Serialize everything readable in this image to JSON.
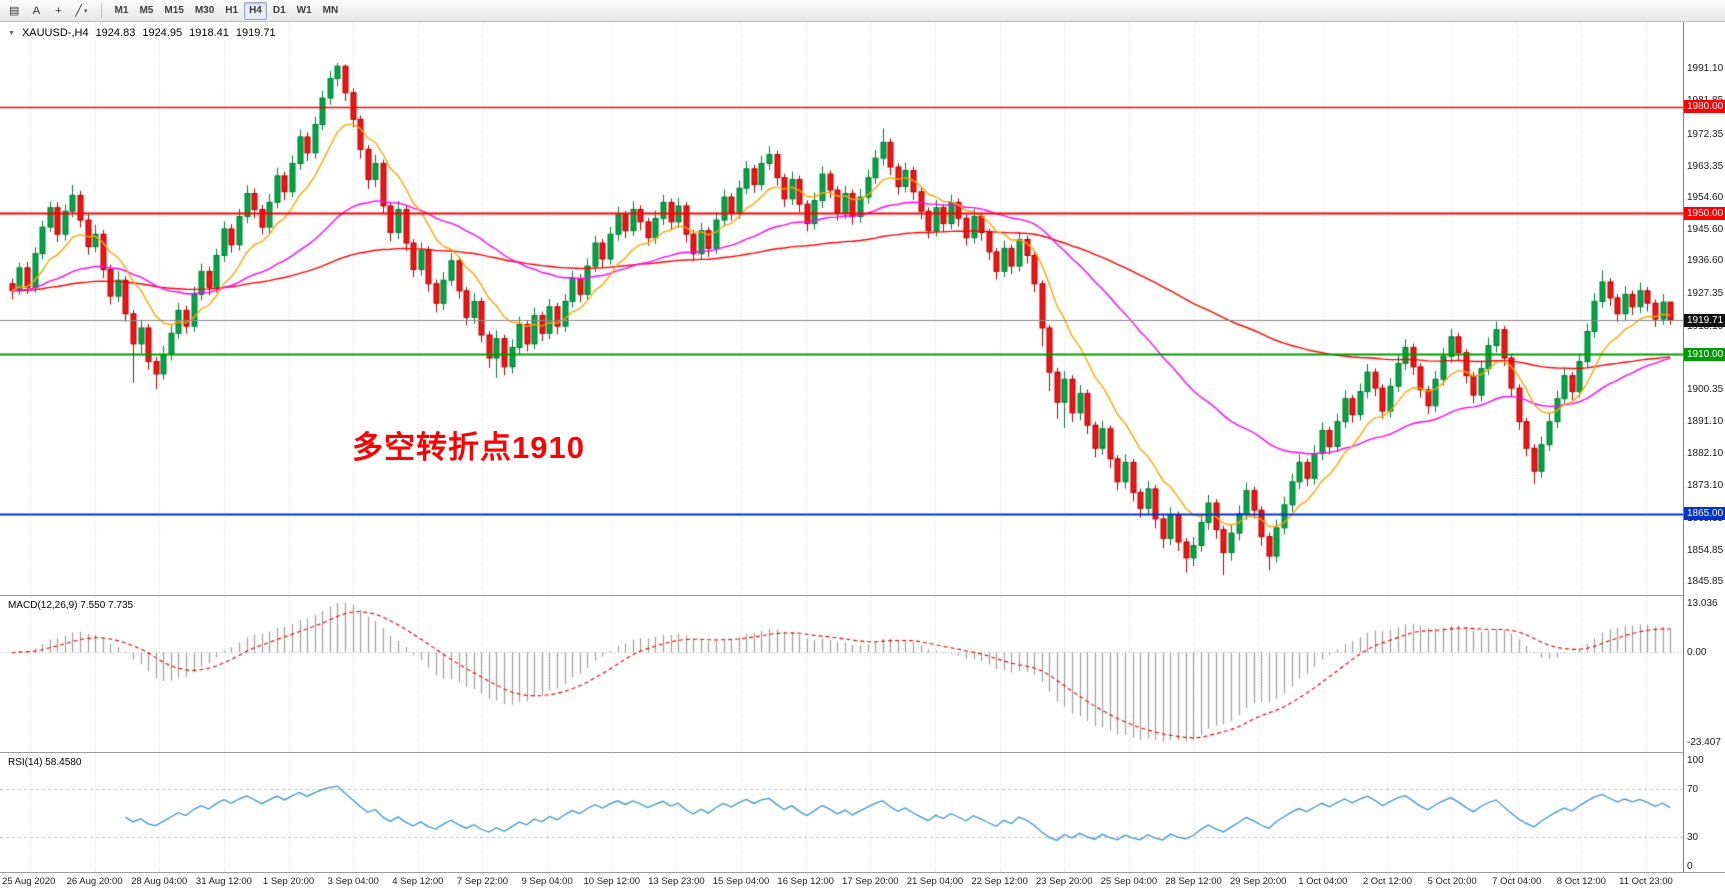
{
  "icons": {
    "caret_down": "▼",
    "charts_grid": "▤",
    "text_tool": "A",
    "crosshair": "+",
    "trendline": "╱",
    "dropdown": "▾"
  },
  "toolbar": {
    "timeframes": [
      "M1",
      "M5",
      "M15",
      "M30",
      "H1",
      "H4",
      "D1",
      "W1",
      "MN"
    ],
    "active_timeframe": "H4"
  },
  "chart": {
    "symbol_label": "XAUUSD-,H4",
    "ohlc": {
      "open": "1924.83",
      "high": "1924.95",
      "low": "1918.41",
      "close": "1919.71"
    },
    "annotation": {
      "text": "多空转折点1910",
      "color": "#ff0000"
    },
    "colors": {
      "up_fill": "#00a546",
      "up_stroke": "#007d33",
      "down_fill": "#ed1515",
      "down_stroke": "#b80000",
      "ma_fast": "#ffa500",
      "ma_mid": "#ff00ff",
      "ma_slow": "#ff0000",
      "grid": "#dcdcdc"
    },
    "price_ticks": [
      1991.1,
      1981.85,
      1972.35,
      1963.35,
      1954.6,
      1945.6,
      1936.6,
      1927.35,
      1918.1,
      1909.1,
      1900.35,
      1891.1,
      1882.1,
      1873.1,
      1863.85,
      1854.85,
      1845.85
    ],
    "levels": [
      {
        "value": 1980.0,
        "label": "1980.00",
        "badge_color": "#ff0000",
        "line_color": "#ff0000",
        "line_width": 1.5
      },
      {
        "value": 1950.0,
        "label": "1950.00",
        "badge_color": "#ff0000",
        "line_color": "#ff0000",
        "line_width": 2
      },
      {
        "value": 1919.71,
        "label": "1919.71",
        "badge_color": "#111111",
        "line_color": "#8a8a8a",
        "line_width": 1,
        "current": true
      },
      {
        "value": 1910.0,
        "label": "1910.00",
        "badge_color": "#009b00",
        "line_color": "#009b00",
        "line_width": 2
      },
      {
        "value": 1865.0,
        "label": "1865.00",
        "badge_color": "#0033cc",
        "line_color": "#0033cc",
        "line_width": 2
      }
    ]
  },
  "panes": {
    "macd": {
      "label": "MACD(12,26,9) 7.550 7.735",
      "axis_labels": [
        {
          "v": 13.036,
          "t": "13.036"
        },
        {
          "v": 0,
          "t": "0.00"
        },
        {
          "v": -23.407,
          "t": "-23.407"
        }
      ],
      "scale_min": -26.0,
      "scale_max": 14.5
    },
    "rsi": {
      "label": "RSI(14) 58.4580",
      "axis_labels": [
        {
          "v": 100,
          "t": "100"
        },
        {
          "v": 70,
          "t": "70"
        },
        {
          "v": 30,
          "t": "30"
        },
        {
          "v": 0,
          "t": "0"
        }
      ],
      "levels": [
        70,
        30
      ]
    }
  },
  "time_axis": [
    "25 Aug 2020",
    "26 Aug 20:00",
    "28 Aug 04:00",
    "31 Aug 12:00",
    "1 Sep 20:00",
    "3 Sep 04:00",
    "4 Sep 12:00",
    "7 Sep 22:00",
    "9 Sep 04:00",
    "10 Sep 12:00",
    "13 Sep 23:00",
    "15 Sep 04:00",
    "16 Sep 12:00",
    "17 Sep 20:00",
    "21 Sep 04:00",
    "22 Sep 12:00",
    "23 Sep 20:00",
    "25 Sep 04:00",
    "28 Sep 12:00",
    "29 Sep 20:00",
    "1 Oct 04:00",
    "2 Oct 12:00",
    "5 Oct 20:00",
    "7 Oct 04:00",
    "8 Oct 12:00",
    "11 Oct 23:00"
  ],
  "chart_data": {
    "type": "candlestick",
    "symbol": "XAUUSD",
    "timeframe": "H4",
    "title": "XAUUSD-,H4",
    "price_range": {
      "min": 1842.0,
      "max": 2004.0
    },
    "bars_format": [
      "high",
      "low",
      "close"
    ],
    "open_policy": "previous_close",
    "bars_hlc": [
      [
        1931.5,
        1925.6,
        1928.0
      ],
      [
        1936.0,
        1926.8,
        1934.5
      ],
      [
        1936.2,
        1927.1,
        1929.0
      ],
      [
        1940.3,
        1927.5,
        1938.5
      ],
      [
        1947.8,
        1936.9,
        1946.0
      ],
      [
        1953.2,
        1944.6,
        1951.5
      ],
      [
        1953.0,
        1941.8,
        1944.0
      ],
      [
        1952.4,
        1942.2,
        1950.5
      ],
      [
        1957.9,
        1948.8,
        1955.0
      ],
      [
        1956.3,
        1945.9,
        1948.0
      ],
      [
        1949.6,
        1938.2,
        1940.5
      ],
      [
        1946.7,
        1938.9,
        1944.0
      ],
      [
        1945.2,
        1931.6,
        1934.0
      ],
      [
        1935.4,
        1924.1,
        1926.5
      ],
      [
        1933.6,
        1924.8,
        1931.0
      ],
      [
        1932.2,
        1919.3,
        1921.5
      ],
      [
        1922.6,
        1902.0,
        1913.0
      ],
      [
        1919.8,
        1910.4,
        1917.5
      ],
      [
        1918.6,
        1905.7,
        1908.0
      ],
      [
        1909.3,
        1900.2,
        1904.5
      ],
      [
        1912.4,
        1902.9,
        1910.0
      ],
      [
        1918.1,
        1908.3,
        1916.0
      ],
      [
        1924.6,
        1914.5,
        1922.5
      ],
      [
        1923.8,
        1915.9,
        1918.0
      ],
      [
        1929.2,
        1916.4,
        1927.0
      ],
      [
        1935.7,
        1925.3,
        1933.5
      ],
      [
        1934.8,
        1926.7,
        1929.0
      ],
      [
        1939.9,
        1927.4,
        1938.0
      ],
      [
        1947.6,
        1936.2,
        1945.5
      ],
      [
        1946.9,
        1938.8,
        1941.0
      ],
      [
        1951.2,
        1939.4,
        1949.0
      ],
      [
        1957.8,
        1947.1,
        1955.5
      ],
      [
        1956.9,
        1948.6,
        1951.0
      ],
      [
        1952.3,
        1943.9,
        1946.0
      ],
      [
        1955.4,
        1944.2,
        1953.0
      ],
      [
        1962.8,
        1951.3,
        1960.5
      ],
      [
        1961.7,
        1953.6,
        1956.0
      ],
      [
        1966.3,
        1954.4,
        1964.0
      ],
      [
        1973.6,
        1962.2,
        1971.5
      ],
      [
        1972.8,
        1964.7,
        1967.0
      ],
      [
        1977.2,
        1965.3,
        1975.0
      ],
      [
        1984.6,
        1973.4,
        1982.5
      ],
      [
        1990.1,
        1980.6,
        1988.0
      ],
      [
        1992.4,
        1985.8,
        1991.5
      ],
      [
        1992.0,
        1981.7,
        1984.0
      ],
      [
        1985.3,
        1974.2,
        1976.5
      ],
      [
        1977.6,
        1965.4,
        1968.0
      ],
      [
        1969.2,
        1956.8,
        1959.5
      ],
      [
        1966.5,
        1957.3,
        1964.0
      ],
      [
        1965.1,
        1949.7,
        1952.0
      ],
      [
        1953.2,
        1941.9,
        1944.5
      ],
      [
        1953.4,
        1942.6,
        1951.0
      ],
      [
        1952.1,
        1939.2,
        1941.5
      ],
      [
        1942.6,
        1931.8,
        1934.0
      ],
      [
        1941.7,
        1932.3,
        1939.5
      ],
      [
        1940.6,
        1927.7,
        1930.0
      ],
      [
        1931.2,
        1921.9,
        1924.5
      ],
      [
        1933.3,
        1922.6,
        1931.0
      ],
      [
        1938.7,
        1929.4,
        1936.5
      ],
      [
        1937.6,
        1925.8,
        1928.0
      ],
      [
        1929.1,
        1918.2,
        1920.5
      ],
      [
        1927.3,
        1918.7,
        1925.0
      ],
      [
        1926.1,
        1913.4,
        1915.5
      ],
      [
        1916.6,
        1906.2,
        1909.0
      ],
      [
        1916.8,
        1903.4,
        1914.5
      ],
      [
        1915.6,
        1904.1,
        1906.5
      ],
      [
        1914.3,
        1904.6,
        1912.0
      ],
      [
        1920.7,
        1910.2,
        1918.5
      ],
      [
        1919.6,
        1910.9,
        1913.0
      ],
      [
        1923.2,
        1911.5,
        1921.0
      ],
      [
        1922.1,
        1913.8,
        1916.0
      ],
      [
        1925.7,
        1914.3,
        1923.5
      ],
      [
        1924.6,
        1915.7,
        1918.0
      ],
      [
        1927.1,
        1916.4,
        1925.0
      ],
      [
        1933.6,
        1923.2,
        1931.5
      ],
      [
        1932.7,
        1924.8,
        1927.0
      ],
      [
        1937.2,
        1925.4,
        1935.0
      ],
      [
        1943.6,
        1933.3,
        1941.5
      ],
      [
        1942.7,
        1934.6,
        1937.0
      ],
      [
        1946.1,
        1935.4,
        1944.0
      ],
      [
        1951.8,
        1942.2,
        1949.5
      ],
      [
        1950.6,
        1942.9,
        1945.0
      ],
      [
        1953.3,
        1943.5,
        1951.0
      ],
      [
        1952.2,
        1945.1,
        1947.5
      ],
      [
        1948.6,
        1940.8,
        1943.0
      ],
      [
        1950.7,
        1941.3,
        1948.5
      ],
      [
        1955.2,
        1946.6,
        1953.0
      ],
      [
        1954.1,
        1945.2,
        1947.5
      ],
      [
        1954.3,
        1945.8,
        1952.0
      ],
      [
        1953.1,
        1941.7,
        1944.0
      ],
      [
        1945.2,
        1936.3,
        1938.5
      ],
      [
        1947.2,
        1936.8,
        1945.0
      ],
      [
        1946.1,
        1937.6,
        1940.0
      ],
      [
        1950.2,
        1938.4,
        1948.0
      ],
      [
        1956.7,
        1946.2,
        1954.5
      ],
      [
        1955.6,
        1947.8,
        1950.0
      ],
      [
        1959.2,
        1948.4,
        1957.0
      ],
      [
        1964.7,
        1955.3,
        1962.5
      ],
      [
        1963.6,
        1955.7,
        1958.0
      ],
      [
        1966.2,
        1956.4,
        1964.0
      ],
      [
        1968.9,
        1962.2,
        1966.5
      ],
      [
        1967.6,
        1957.8,
        1960.0
      ],
      [
        1961.1,
        1951.7,
        1954.0
      ],
      [
        1961.7,
        1952.3,
        1959.5
      ],
      [
        1960.6,
        1950.2,
        1952.5
      ],
      [
        1953.6,
        1944.8,
        1947.0
      ],
      [
        1955.7,
        1945.3,
        1953.5
      ],
      [
        1963.2,
        1951.4,
        1961.0
      ],
      [
        1962.1,
        1954.2,
        1956.5
      ],
      [
        1957.6,
        1947.8,
        1950.0
      ],
      [
        1957.7,
        1948.3,
        1955.5
      ],
      [
        1956.6,
        1946.7,
        1949.0
      ],
      [
        1956.8,
        1947.2,
        1954.5
      ],
      [
        1962.3,
        1952.6,
        1960.0
      ],
      [
        1967.8,
        1958.2,
        1965.5
      ],
      [
        1973.9,
        1963.4,
        1970.0
      ],
      [
        1971.1,
        1960.7,
        1963.0
      ],
      [
        1964.1,
        1955.2,
        1957.5
      ],
      [
        1964.2,
        1955.8,
        1962.0
      ],
      [
        1963.1,
        1953.7,
        1956.0
      ],
      [
        1957.1,
        1948.2,
        1950.5
      ],
      [
        1951.6,
        1942.8,
        1945.0
      ],
      [
        1953.7,
        1943.4,
        1951.5
      ],
      [
        1952.6,
        1944.7,
        1947.0
      ],
      [
        1955.2,
        1945.4,
        1953.0
      ],
      [
        1954.1,
        1946.2,
        1948.5
      ],
      [
        1949.6,
        1940.8,
        1943.0
      ],
      [
        1951.2,
        1941.4,
        1949.0
      ],
      [
        1950.1,
        1942.2,
        1944.5
      ],
      [
        1945.6,
        1936.7,
        1939.0
      ],
      [
        1940.1,
        1931.2,
        1933.5
      ],
      [
        1942.2,
        1931.9,
        1940.0
      ],
      [
        1941.1,
        1932.7,
        1935.0
      ],
      [
        1944.7,
        1933.4,
        1942.5
      ],
      [
        1943.6,
        1935.7,
        1938.0
      ],
      [
        1939.1,
        1927.6,
        1930.0
      ],
      [
        1931.0,
        1912.3,
        1917.5
      ],
      [
        1918.4,
        1899.6,
        1905.0
      ],
      [
        1906.2,
        1891.8,
        1896.5
      ],
      [
        1905.3,
        1889.2,
        1903.0
      ],
      [
        1904.1,
        1890.9,
        1893.5
      ],
      [
        1901.3,
        1891.4,
        1899.0
      ],
      [
        1900.1,
        1887.5,
        1890.0
      ],
      [
        1891.0,
        1880.9,
        1883.5
      ],
      [
        1891.3,
        1881.6,
        1889.0
      ],
      [
        1890.0,
        1877.9,
        1880.5
      ],
      [
        1881.5,
        1871.6,
        1874.0
      ],
      [
        1881.8,
        1872.1,
        1879.5
      ],
      [
        1880.5,
        1868.4,
        1871.0
      ],
      [
        1872.1,
        1863.9,
        1866.5
      ],
      [
        1874.3,
        1864.6,
        1872.0
      ],
      [
        1873.1,
        1860.8,
        1863.5
      ],
      [
        1864.6,
        1855.2,
        1858.0
      ],
      [
        1866.8,
        1856.1,
        1864.5
      ],
      [
        1865.6,
        1854.4,
        1857.0
      ],
      [
        1858.1,
        1848.3,
        1852.5
      ],
      [
        1858.4,
        1850.1,
        1856.0
      ],
      [
        1864.8,
        1854.2,
        1862.5
      ],
      [
        1870.3,
        1860.4,
        1868.0
      ],
      [
        1869.1,
        1857.9,
        1860.5
      ],
      [
        1861.6,
        1847.6,
        1854.0
      ],
      [
        1861.8,
        1851.7,
        1859.5
      ],
      [
        1867.3,
        1857.4,
        1865.0
      ],
      [
        1873.8,
        1863.2,
        1871.5
      ],
      [
        1872.6,
        1863.7,
        1866.0
      ],
      [
        1867.1,
        1855.9,
        1858.5
      ],
      [
        1859.6,
        1849.0,
        1853.0
      ],
      [
        1863.3,
        1851.2,
        1861.0
      ],
      [
        1869.8,
        1859.1,
        1867.5
      ],
      [
        1876.3,
        1865.4,
        1874.0
      ],
      [
        1881.8,
        1871.9,
        1879.5
      ],
      [
        1880.6,
        1872.7,
        1875.0
      ],
      [
        1884.3,
        1873.2,
        1882.0
      ],
      [
        1890.8,
        1880.1,
        1888.5
      ],
      [
        1889.6,
        1881.7,
        1884.0
      ],
      [
        1893.3,
        1882.4,
        1891.0
      ],
      [
        1899.8,
        1889.2,
        1897.5
      ],
      [
        1898.6,
        1890.7,
        1893.0
      ],
      [
        1901.8,
        1891.4,
        1899.5
      ],
      [
        1907.3,
        1897.6,
        1905.0
      ],
      [
        1906.1,
        1898.2,
        1900.5
      ],
      [
        1901.6,
        1891.8,
        1894.0
      ],
      [
        1903.3,
        1892.2,
        1901.0
      ],
      [
        1909.8,
        1899.4,
        1907.5
      ],
      [
        1914.3,
        1905.6,
        1912.0
      ],
      [
        1913.1,
        1904.2,
        1906.5
      ],
      [
        1907.6,
        1897.8,
        1900.0
      ],
      [
        1901.1,
        1893.2,
        1895.5
      ],
      [
        1905.3,
        1893.7,
        1903.0
      ],
      [
        1911.8,
        1901.2,
        1909.5
      ],
      [
        1917.3,
        1907.6,
        1915.0
      ],
      [
        1916.1,
        1908.2,
        1910.5
      ],
      [
        1911.6,
        1901.8,
        1904.0
      ],
      [
        1905.1,
        1896.2,
        1898.5
      ],
      [
        1908.3,
        1896.7,
        1906.0
      ],
      [
        1914.8,
        1904.1,
        1912.5
      ],
      [
        1919.3,
        1910.6,
        1917.0
      ],
      [
        1918.1,
        1906.7,
        1909.0
      ],
      [
        1910.1,
        1898.2,
        1900.5
      ],
      [
        1901.6,
        1888.7,
        1891.0
      ],
      [
        1892.1,
        1881.2,
        1883.5
      ],
      [
        1884.6,
        1873.4,
        1877.0
      ],
      [
        1886.8,
        1875.1,
        1884.5
      ],
      [
        1893.3,
        1882.7,
        1891.0
      ],
      [
        1899.8,
        1889.2,
        1897.5
      ],
      [
        1906.3,
        1895.6,
        1904.0
      ],
      [
        1905.1,
        1897.2,
        1899.5
      ],
      [
        1910.3,
        1897.8,
        1908.0
      ],
      [
        1918.8,
        1906.2,
        1916.5
      ],
      [
        1927.3,
        1914.7,
        1925.0
      ],
      [
        1933.8,
        1923.2,
        1930.5
      ],
      [
        1931.6,
        1923.7,
        1926.0
      ],
      [
        1927.1,
        1919.2,
        1921.5
      ],
      [
        1929.3,
        1919.6,
        1927.0
      ],
      [
        1928.1,
        1921.2,
        1923.5
      ],
      [
        1930.3,
        1921.7,
        1928.0
      ],
      [
        1929.1,
        1922.2,
        1924.5
      ],
      [
        1925.6,
        1917.8,
        1920.0
      ],
      [
        1927.1,
        1918.4,
        1924.8
      ],
      [
        1924.95,
        1918.41,
        1919.71
      ]
    ]
  }
}
